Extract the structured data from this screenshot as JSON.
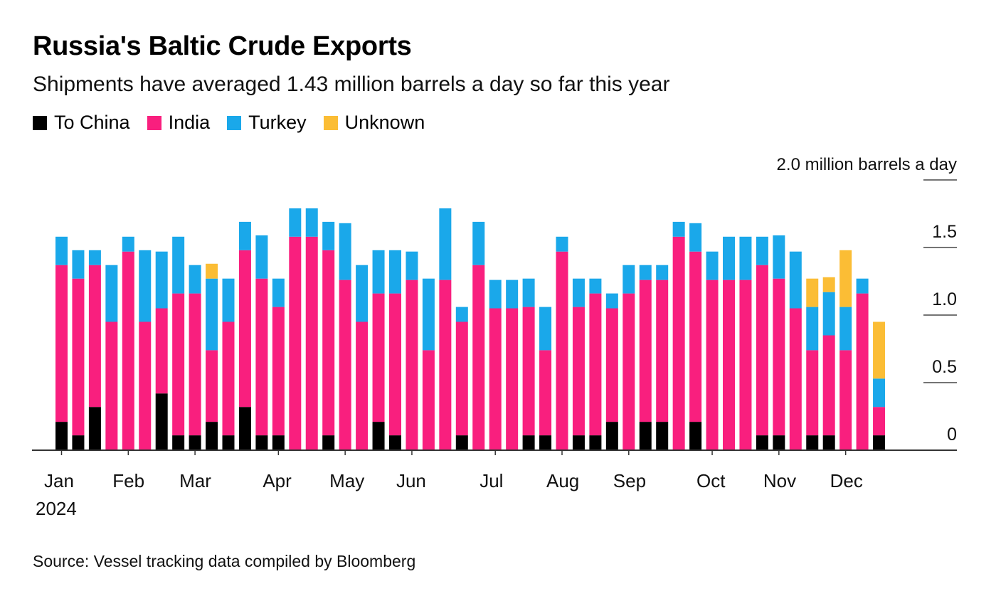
{
  "chart_data": {
    "type": "bar",
    "stacked": true,
    "title": "Russia's Baltic Crude Exports",
    "subtitle": "Shipments have averaged 1.43 million barrels a day so far this year",
    "ylabel": "2.0 million barrels a day",
    "ylim": [
      0,
      2.0
    ],
    "yticks": [
      {
        "v": 0,
        "label": "0"
      },
      {
        "v": 0.5,
        "label": "0.5"
      },
      {
        "v": 1.0,
        "label": "1.0"
      },
      {
        "v": 1.5,
        "label": "1.5"
      },
      {
        "v": 2.0,
        "label": "2.0 million barrels a day"
      }
    ],
    "x_interval": "weekly",
    "month_ticks": [
      {
        "label": "Jan",
        "bar": 0
      },
      {
        "label": "Feb",
        "bar": 4
      },
      {
        "label": "Mar",
        "bar": 8
      },
      {
        "label": "Apr",
        "bar": 13
      },
      {
        "label": "May",
        "bar": 17
      },
      {
        "label": "Jun",
        "bar": 21
      },
      {
        "label": "Jul",
        "bar": 26
      },
      {
        "label": "Aug",
        "bar": 30
      },
      {
        "label": "Sep",
        "bar": 34
      },
      {
        "label": "Oct",
        "bar": 39
      },
      {
        "label": "Nov",
        "bar": 43
      },
      {
        "label": "Dec",
        "bar": 47
      }
    ],
    "year_label": "2024",
    "legend_position": "top-left",
    "series": [
      {
        "name": "To China",
        "color": "#000000",
        "values": [
          0.21,
          0.11,
          0.32,
          0,
          0,
          0,
          0.42,
          0.11,
          0.11,
          0.21,
          0.11,
          0.32,
          0.11,
          0.11,
          0,
          0,
          0.11,
          0,
          0,
          0.21,
          0.11,
          0,
          0,
          0,
          0.11,
          0,
          0,
          0,
          0.11,
          0.11,
          0,
          0.11,
          0.11,
          0.21,
          0,
          0.21,
          0.21,
          0,
          0.21,
          0,
          0,
          0,
          0.11,
          0.11,
          0,
          0.11,
          0.11,
          0,
          0,
          0.11
        ]
      },
      {
        "name": "India",
        "color": "#f91f7e",
        "values": [
          1.16,
          1.16,
          1.05,
          0.95,
          1.47,
          0.95,
          0.63,
          1.05,
          1.05,
          0.53,
          0.84,
          1.16,
          1.16,
          0.95,
          1.58,
          1.58,
          1.37,
          1.26,
          0.95,
          0.95,
          1.05,
          1.26,
          0.74,
          1.26,
          0.84,
          1.37,
          1.05,
          1.05,
          0.95,
          0.63,
          1.47,
          0.95,
          1.05,
          0.84,
          1.16,
          1.05,
          1.05,
          1.58,
          1.26,
          1.26,
          1.26,
          1.26,
          1.26,
          1.16,
          1.05,
          0.63,
          0.74,
          0.74,
          1.16,
          0.21
        ]
      },
      {
        "name": "Turkey",
        "color": "#1aa8ea",
        "values": [
          0.21,
          0.21,
          0.11,
          0.42,
          0.11,
          0.53,
          0.42,
          0.42,
          0.21,
          0.53,
          0.32,
          0.21,
          0.32,
          0.21,
          0.21,
          0.21,
          0.21,
          0.42,
          0.42,
          0.32,
          0.32,
          0.21,
          0.53,
          0.53,
          0.11,
          0.32,
          0.21,
          0.21,
          0.21,
          0.32,
          0.11,
          0.21,
          0.11,
          0.11,
          0.21,
          0.11,
          0.11,
          0.11,
          0.21,
          0.21,
          0.32,
          0.32,
          0.21,
          0.32,
          0.42,
          0.32,
          0.32,
          0.32,
          0.11,
          0.21
        ]
      },
      {
        "name": "Unknown",
        "color": "#fbbd35",
        "values": [
          0,
          0,
          0,
          0,
          0,
          0,
          0,
          0,
          0,
          0.11,
          0,
          0,
          0,
          0,
          0,
          0,
          0,
          0,
          0,
          0,
          0,
          0,
          0,
          0,
          0,
          0,
          0,
          0,
          0,
          0,
          0,
          0,
          0,
          0,
          0,
          0,
          0,
          0,
          0,
          0,
          0,
          0,
          0,
          0,
          0,
          0.21,
          0.11,
          0.42,
          0,
          0.42
        ]
      }
    ],
    "source": "Source: Vessel tracking data compiled by Bloomberg"
  }
}
